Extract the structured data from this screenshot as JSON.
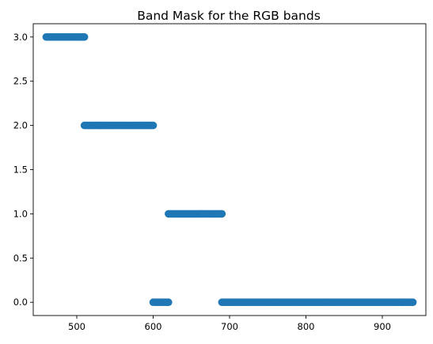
{
  "chart_data": {
    "type": "scatter",
    "title": "Band Mask for the RGB bands",
    "xlabel": "",
    "ylabel": "",
    "xlim": [
      443,
      957
    ],
    "ylim": [
      -0.15,
      3.15
    ],
    "x_ticks": [
      500,
      600,
      700,
      800,
      900
    ],
    "x_tick_labels": [
      "500",
      "600",
      "700",
      "800",
      "900"
    ],
    "y_ticks": [
      0.0,
      0.5,
      1.0,
      1.5,
      2.0,
      2.5,
      3.0
    ],
    "y_tick_labels": [
      "0.0",
      "0.5",
      "1.0",
      "1.5",
      "2.0",
      "2.5",
      "3.0"
    ],
    "grid": false,
    "legend": "none",
    "marker_color": "#1f77b4",
    "series": [
      {
        "x_start": 460,
        "x_end": 510,
        "step": 2,
        "y": 3.0
      },
      {
        "x_start": 510,
        "x_end": 600,
        "step": 2,
        "y": 2.0
      },
      {
        "x_start": 600,
        "x_end": 620,
        "step": 2,
        "y": 0.0
      },
      {
        "x_start": 620,
        "x_end": 690,
        "step": 2,
        "y": 1.0
      },
      {
        "x_start": 690,
        "x_end": 940,
        "step": 2,
        "y": 0.0
      }
    ]
  }
}
